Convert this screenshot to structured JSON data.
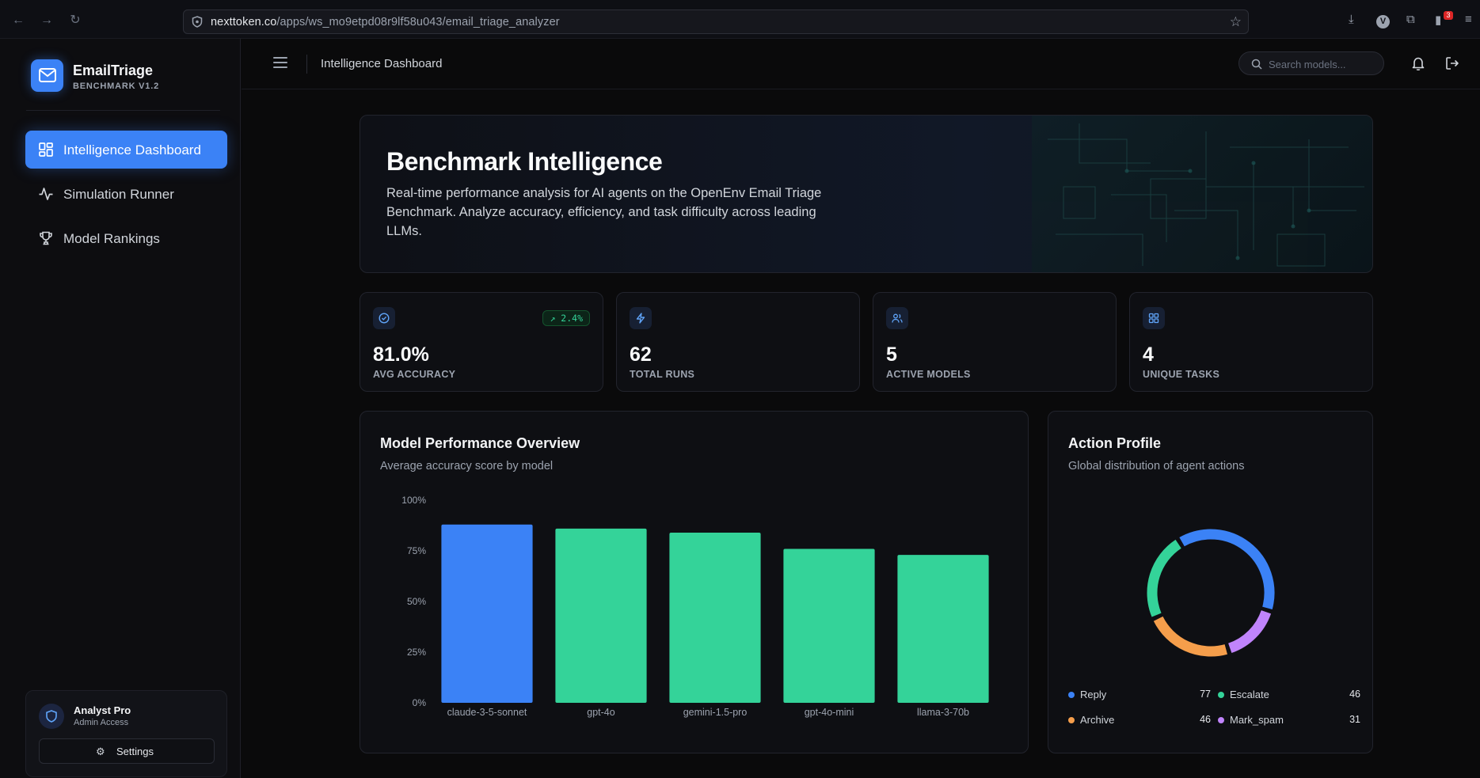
{
  "browser": {
    "url_host": "nexttoken.co",
    "url_path": "/apps/ws_mo9etpd08r9lf58u043/email_triage_analyzer",
    "notification_count": "3"
  },
  "brand": {
    "name": "EmailTriage",
    "subtitle": "BENCHMARK V1.2"
  },
  "sidebar": {
    "items": [
      {
        "label": "Intelligence Dashboard",
        "icon": "grid-icon",
        "active": true
      },
      {
        "label": "Simulation Runner",
        "icon": "activity-icon",
        "active": false
      },
      {
        "label": "Model Rankings",
        "icon": "trophy-icon",
        "active": false
      }
    ]
  },
  "user": {
    "name": "Analyst Pro",
    "role": "Admin Access",
    "settings_label": "Settings"
  },
  "topbar": {
    "title": "Intelligence Dashboard",
    "search_placeholder": "Search models..."
  },
  "hero": {
    "title": "Benchmark Intelligence",
    "description": "Real-time performance analysis for AI agents on the OpenEnv Email Triage Benchmark. Analyze accuracy, efficiency, and task difficulty across leading LLMs."
  },
  "stats": [
    {
      "value": "81.0%",
      "label": "AVG ACCURACY",
      "icon": "check-circle-icon",
      "trend": "↗ 2.4%"
    },
    {
      "value": "62",
      "label": "TOTAL RUNS",
      "icon": "lightning-icon"
    },
    {
      "value": "5",
      "label": "ACTIVE MODELS",
      "icon": "users-icon"
    },
    {
      "value": "4",
      "label": "UNIQUE TASKS",
      "icon": "grid-icon"
    }
  ],
  "performance": {
    "title": "Model Performance Overview",
    "subtitle": "Average accuracy score by model"
  },
  "actions": {
    "title": "Action Profile",
    "subtitle": "Global distribution of agent actions"
  },
  "colors": {
    "accent": "#3b82f6",
    "green": "#34d399",
    "orange": "#f59e4b",
    "purple": "#c084fc"
  },
  "chart_data": [
    {
      "type": "bar",
      "categories": [
        "claude-3-5-sonnet",
        "gpt-4o",
        "gemini-1.5-pro",
        "gpt-4o-mini",
        "llama-3-70b"
      ],
      "values": [
        88,
        86,
        84,
        76,
        73
      ],
      "colors": [
        "#3b82f6",
        "#34d399",
        "#34d399",
        "#34d399",
        "#34d399"
      ],
      "yticks": [
        "0%",
        "25%",
        "50%",
        "75%",
        "100%"
      ],
      "ylim": [
        0,
        100
      ],
      "grid": false
    },
    {
      "type": "pie",
      "donut": true,
      "labels": [
        "Reply",
        "Escalate",
        "Archive",
        "Mark_spam"
      ],
      "values": [
        77,
        46,
        46,
        31
      ],
      "colors": [
        "#3b82f6",
        "#34d399",
        "#f59e4b",
        "#c084fc"
      ],
      "slice_order": [
        "Reply",
        "Mark_spam",
        "Archive",
        "Escalate"
      ],
      "legend": "bottom"
    }
  ]
}
